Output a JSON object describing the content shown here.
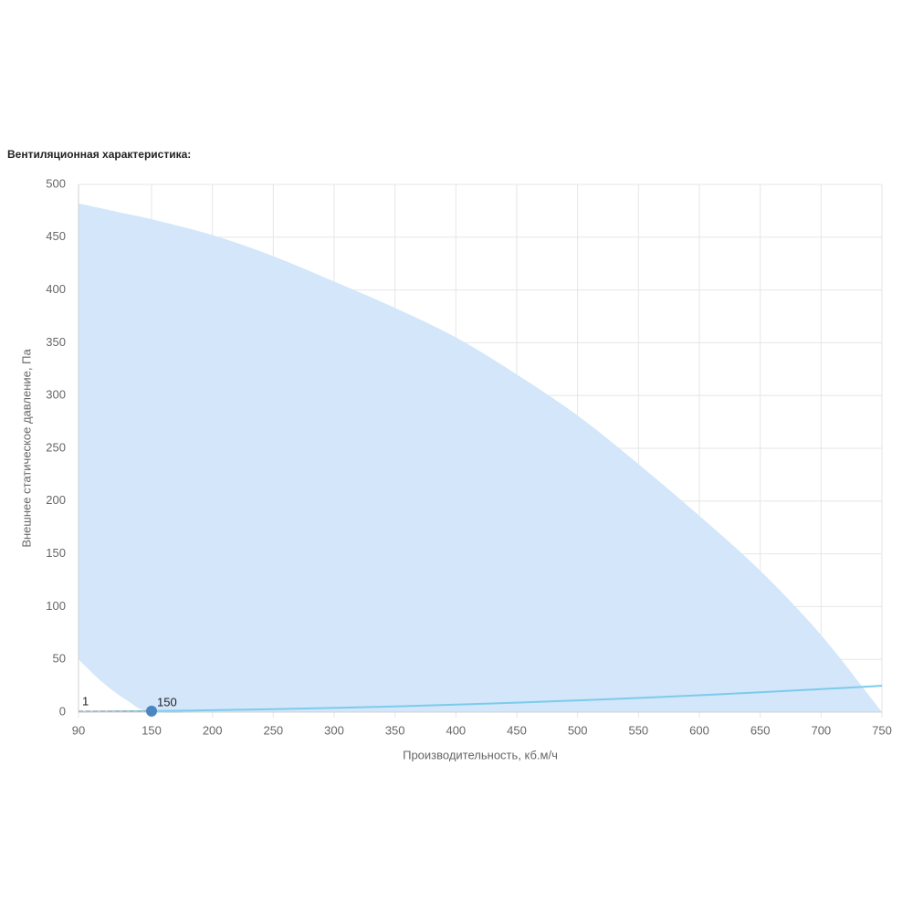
{
  "chart_data": {
    "type": "area",
    "title": "Вентиляционная характеристика:",
    "x_label": "Производительность, кб.м/ч",
    "y_label": "Внешнее статическое давление, Па",
    "x": [
      90,
      110,
      130,
      150,
      200,
      250,
      300,
      350,
      400,
      450,
      500,
      550,
      600,
      650,
      700,
      750
    ],
    "series": [
      {
        "type": "area",
        "color": "#d3e6fa",
        "values": [
          482,
          477,
          472,
          467,
          452,
          432,
          408,
          383,
          355,
          320,
          281,
          235,
          186,
          134,
          73,
          0
        ],
        "lower": [
          50,
          28,
          11,
          0,
          0,
          0,
          0,
          0,
          0,
          0,
          0,
          0,
          0,
          0,
          0,
          0
        ]
      },
      {
        "type": "line",
        "color": "#7ccbeb",
        "values": [
          0.36,
          0.54,
          0.75,
          1,
          1.8,
          2.8,
          4,
          5.4,
          7.1,
          9,
          11.1,
          13.4,
          16,
          18.8,
          21.8,
          25
        ]
      }
    ],
    "point": {
      "x": 150,
      "y": 1,
      "color": "#4a86c0"
    },
    "xlim": [
      90,
      750
    ],
    "ylim": [
      0,
      500
    ],
    "xticks": [
      90,
      150,
      200,
      250,
      300,
      350,
      400,
      450,
      500,
      550,
      600,
      650,
      700,
      750
    ],
    "yticks": [
      0,
      50,
      100,
      150,
      200,
      250,
      300,
      350,
      400,
      450,
      500
    ],
    "grid": true
  }
}
